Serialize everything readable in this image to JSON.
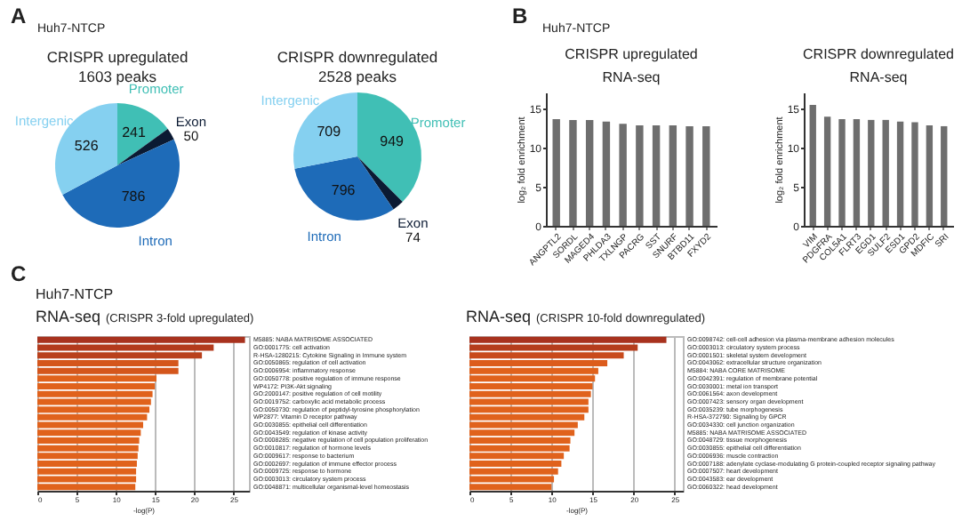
{
  "chart_data": [
    {
      "type": "pie",
      "title": "CRISPR upregulated",
      "subtitle": "1603 peaks",
      "annotations": [
        "A",
        "Huh7-NTCP"
      ],
      "data_labels": true,
      "categories": [
        "Promoter",
        "Exon",
        "Intron",
        "Intergenic"
      ],
      "values": [
        241,
        50,
        786,
        526
      ],
      "colors": [
        "#40bfb5",
        "#0b1a33",
        "#1e6bb8",
        "#85d0f0"
      ]
    },
    {
      "type": "pie",
      "title": "CRISPR downregulated",
      "subtitle": "2528 peaks",
      "data_labels": true,
      "categories": [
        "Promoter",
        "Exon",
        "Intron",
        "Intergenic"
      ],
      "values": [
        949,
        74,
        796,
        709
      ],
      "colors": [
        "#40bfb5",
        "#0b1a33",
        "#1e6bb8",
        "#85d0f0"
      ]
    },
    {
      "type": "bar",
      "title": "CRISPR upregulated",
      "subtitle": "RNA-seq",
      "annotations": [
        "B",
        "Huh7-NTCP"
      ],
      "ylabel": "log₂ fold enrichment",
      "categories": [
        "ANGPTL2",
        "SORDL",
        "MAGED4",
        "PHLDA3",
        "TXLNGP",
        "PACRG",
        "SST",
        "SNURF",
        "BTBD11",
        "FXYD2"
      ],
      "values": [
        13.6,
        13.5,
        13.5,
        13.3,
        13.0,
        12.8,
        12.8,
        12.8,
        12.7,
        12.7
      ],
      "color": "#6e6e6e",
      "ylim": [
        0,
        17
      ],
      "yticks": [
        0,
        5,
        10,
        15
      ]
    },
    {
      "type": "bar",
      "title": "CRISPR downregulated",
      "subtitle": "RNA-seq",
      "ylabel": "log₂ fold enrichment",
      "categories": [
        "VIM",
        "PDGFRA",
        "COL5A1",
        "FLRT3",
        "EGD1",
        "SULF2",
        "ESD1",
        "GPD2",
        "MDFIC",
        "SRI"
      ],
      "values": [
        15.4,
        13.9,
        13.6,
        13.6,
        13.5,
        13.5,
        13.3,
        13.2,
        12.8,
        12.7
      ],
      "color": "#6e6e6e",
      "ylim": [
        0,
        17
      ],
      "yticks": [
        0,
        5,
        10,
        15
      ]
    },
    {
      "type": "bar",
      "orientation": "horizontal",
      "title": "RNA-seq",
      "subtitle": "(CRISPR 3-fold upregulated)",
      "annotations": [
        "C",
        "Huh7-NTCP"
      ],
      "xlabel": "-log(P)",
      "grid": "x",
      "categories": [
        "M5885: NABA MATRISOME ASSOCIATED",
        "GO:0001775: cell activation",
        "R-HSA-1280215: Cytokine Signaling in Immune system",
        "GO:0050865: regulation of cell activation",
        "GO:0006954: inflammatory response",
        "GO:0050778: positive regulation of immune response",
        "WP4172: PI3K-Akt signaling",
        "GO:2000147: positive regulation of cell motility",
        "GO:0019752: carboxylic acid metabolic process",
        "GO:0050730: regulation of peptidyl-tyrosine phosphorylation",
        "WP2877: Vitamin D receptor pathway",
        "GO:0030855: epithelial cell differentiation",
        "GO:0043549: regulation of kinase activity",
        "GO:0008285: negative regulation of cell population proliferation",
        "GO:0010817: regulation of hormone levels",
        "GO:0009617: response to bacterium",
        "GO:0002697: regulation of immune effector process",
        "GO:0009725: response to hormone",
        "GO:0003013: circulatory system process",
        "GO:0048871: multicellular organismal-level homeostasis"
      ],
      "values": [
        26.5,
        22.5,
        21,
        18,
        18,
        15.2,
        15,
        14.7,
        14.5,
        14.3,
        14,
        13.5,
        13.2,
        13,
        12.9,
        12.8,
        12.7,
        12.6,
        12.6,
        12.5
      ],
      "colors": [
        "#a8321e",
        "#b33a1c",
        "#b9401c",
        "#d4561c",
        "#d4561c",
        "#e0621c",
        "#e0621c",
        "#e0621c",
        "#e0621c",
        "#e0621c",
        "#e0621c",
        "#e0621c",
        "#e0621c",
        "#e0621c",
        "#e0621c",
        "#e0621c",
        "#e0621c",
        "#e0621c",
        "#e0621c",
        "#e0621c"
      ],
      "xlim": [
        0,
        27
      ],
      "xticks": [
        0,
        5,
        10,
        15,
        20,
        25
      ]
    },
    {
      "type": "bar",
      "orientation": "horizontal",
      "title": "RNA-seq",
      "subtitle": "(CRISPR 10-fold downregulated)",
      "xlabel": "-log(P)",
      "grid": "x",
      "categories": [
        "GO:0098742: cell-cell adhesion via plasma-membrane adhesion molecules",
        "GO:0003013: circulatory system process",
        "GO:0001501: skeletal system development",
        "GO:0043062: extracellular structure organization",
        "M5884: NABA CORE MATRISOME",
        "GO:0042391: regulation of membrane potential",
        "GO:0030001: metal ion transport",
        "GO:0061564: axon development",
        "GO:0007423: sensory organ development",
        "GO:0035239: tube morphogenesis",
        "R-HSA-372790: Signaling by GPCR",
        "GO:0034330: cell junction organization",
        "M5885: NABA MATRISOME ASSOCIATED",
        "GO:0048729: tissue morphogenesis",
        "GO:0030855: epithelial cell differentiation",
        "GO:0006936: muscle contraction",
        "GO:0007188: adenylate cyclase-modulating G protein-coupled receptor signaling pathway",
        "GO:0007507: heart development",
        "GO:0043583: ear development",
        "GO:0060322: head development"
      ],
      "values": [
        24,
        20.5,
        18.8,
        16.8,
        15.7,
        15.3,
        15,
        14.8,
        14.5,
        14.5,
        14,
        13.2,
        12.8,
        12.3,
        12.2,
        11.5,
        11.2,
        10.8,
        10.3,
        10
      ],
      "colors": [
        "#a8321e",
        "#b53d1c",
        "#c84a1c",
        "#dc5c1c",
        "#e0621c",
        "#e0621c",
        "#e0621c",
        "#e0621c",
        "#e0621c",
        "#e0621c",
        "#e0621c",
        "#e0621c",
        "#e0621c",
        "#e0621c",
        "#e0621c",
        "#e0621c",
        "#e0621c",
        "#e0621c",
        "#e0621c",
        "#e0621c"
      ],
      "xlim": [
        0,
        26
      ],
      "xticks": [
        0,
        5,
        10,
        15,
        20,
        25
      ]
    }
  ]
}
